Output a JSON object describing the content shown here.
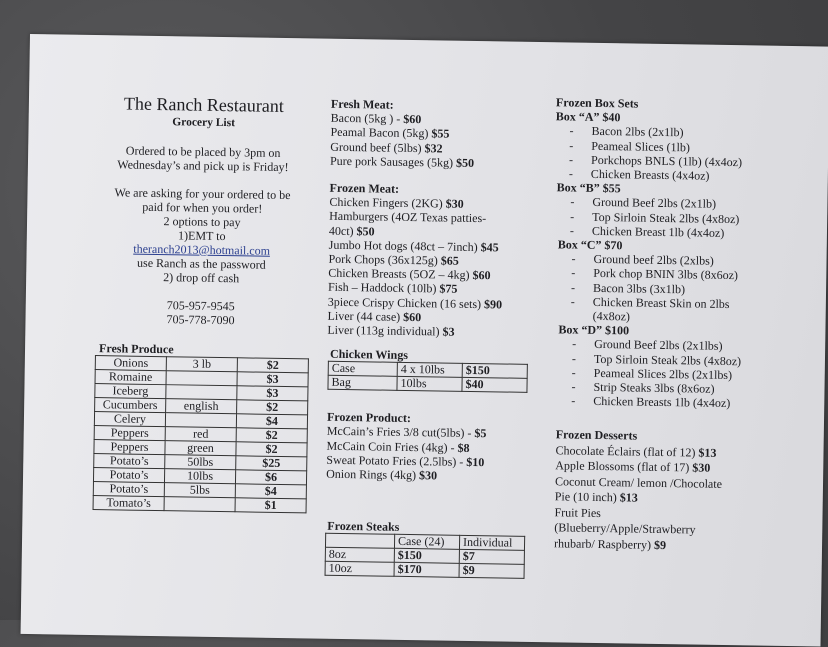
{
  "header": {
    "title": "The Ranch Restaurant",
    "subtitle": "Grocery List",
    "info": [
      "Ordered to be placed by 3pm on",
      "Wednesday’s and pick up is Friday!",
      "",
      "We are asking for your ordered to be",
      "paid for when you order!",
      "2 options to pay",
      "1)EMT to"
    ],
    "email": "theranch2013@hotmail.com",
    "info2": [
      "use Ranch as the password",
      "2) drop off cash",
      "",
      "705-957-9545",
      "705-778-7090"
    ]
  },
  "fresh_meat": {
    "heading": "Fresh Meat:",
    "items": [
      {
        "text": "Bacon (5kg ) - ",
        "price": "$60"
      },
      {
        "text": "Peamal Bacon (5kg) ",
        "price": "$55"
      },
      {
        "text": "Ground beef (5lbs)  ",
        "price": "$32"
      },
      {
        "text": "Pure pork Sausages (5kg) ",
        "price": "$50"
      }
    ]
  },
  "frozen_meat": {
    "heading": "Frozen Meat:",
    "items": [
      {
        "text": "Chicken Fingers  (2KG) ",
        "price": "$30"
      },
      {
        "text": "Hamburgers (4OZ Texas patties-",
        "price": ""
      },
      {
        "text": "40ct) ",
        "price": "$50"
      },
      {
        "text": "Jumbo Hot dogs (48ct – 7inch) ",
        "price": "$45"
      },
      {
        "text": "Pork Chops (36x125g) ",
        "price": "$65"
      },
      {
        "text": "Chicken Breasts (5OZ – 4kg) ",
        "price": "$60"
      },
      {
        "text": "Fish – Haddock (10lb) ",
        "price": "$75"
      },
      {
        "text": "3piece Crispy Chicken (16 sets) ",
        "price": "$90"
      },
      {
        "text": "Liver  (44 case) ",
        "price": "$60"
      },
      {
        "text": "Liver  (113g individual) ",
        "price": "$3"
      }
    ]
  },
  "box_sets": {
    "heading": "Frozen Box Sets",
    "boxes": [
      {
        "title": "Box “A” $40",
        "items": [
          "Bacon 2lbs (2x1lb)",
          "Peameal Slices (1lb)",
          "Porkchops BNLS (1lb) (4x4oz)",
          "Chicken Breasts (4x4oz)"
        ]
      },
      {
        "title": "Box “B” $55",
        "items": [
          "Ground Beef 2lbs (2x1lb)",
          "Top Sirloin Steak 2lbs (4x8oz)",
          "Chicken Breast 1lb (4x4oz)"
        ]
      },
      {
        "title": "Box “C” $70",
        "items": [
          "Ground beef 2lbs (2xlbs)",
          "Pork chop BNIN 3lbs (8x6oz)",
          "Bacon 3lbs (3x1lb)",
          "Chicken Breast Skin on 2lbs",
          "(4x8oz)"
        ]
      },
      {
        "title": "Box “D” $100",
        "items": [
          "Ground Beef 2lbs (2x1lbs)",
          "Top Sirloin Steak 2lbs (4x8oz)",
          "Peameal Slices 2lbs (2x1lbs)",
          "Strip Steaks 3lbs (8x6oz)",
          "Chicken Breasts 1lb (4x4oz)"
        ]
      }
    ]
  },
  "fresh_produce": {
    "heading": "Fresh Produce",
    "rows": [
      [
        "Onions",
        "3 lb",
        "$2"
      ],
      [
        "Romaine",
        "",
        "$3"
      ],
      [
        "Iceberg",
        "",
        "$3"
      ],
      [
        "Cucumbers",
        "english",
        "$2"
      ],
      [
        "Celery",
        "",
        "$4"
      ],
      [
        "Peppers",
        "red",
        "$2"
      ],
      [
        "Peppers",
        "green",
        "$2"
      ],
      [
        "Potato’s",
        "50lbs",
        "$25"
      ],
      [
        "Potato’s",
        "10lbs",
        "$6"
      ],
      [
        "Potato’s",
        "5lbs",
        "$4"
      ],
      [
        "Tomato’s",
        "",
        "$1"
      ]
    ]
  },
  "chicken_wings": {
    "heading": "Chicken Wings",
    "rows": [
      [
        "Case",
        "4 x 10lbs",
        "$150"
      ],
      [
        "Bag",
        "10lbs",
        "$40"
      ]
    ]
  },
  "frozen_product": {
    "heading": "Frozen Product:",
    "items": [
      {
        "text": "McCain’s Fries 3/8 cut(5lbs) - ",
        "price": "$5"
      },
      {
        "text": "McCain Coin Fries (4kg) - ",
        "price": "$8"
      },
      {
        "text": "Sweat Potato Fries (2.5lbs) - ",
        "price": "$10"
      },
      {
        "text": "Onion Rings (4kg) ",
        "price": "$30"
      }
    ]
  },
  "frozen_steaks": {
    "heading": "Frozen Steaks",
    "columns": [
      "",
      "Case (24)",
      "Individual"
    ],
    "rows": [
      [
        "8oz",
        "$150",
        "$7"
      ],
      [
        "10oz",
        "$170",
        "$9"
      ]
    ]
  },
  "desserts": {
    "heading": "Frozen Desserts",
    "items": [
      {
        "text": "Chocolate Éclairs  (flat of 12) ",
        "price": "$13"
      },
      {
        "text": "Apple Blossoms (flat of 17) ",
        "price": "$30"
      },
      {
        "text": "Coconut Cream/ lemon /Chocolate",
        "price": ""
      },
      {
        "text": "Pie (10 inch) ",
        "price": "$13"
      },
      {
        "text": "Fruit Pies",
        "price": ""
      },
      {
        "text": "(Blueberry/Apple/Strawberry",
        "price": ""
      },
      {
        "text": "rhubarb/ Raspberry)  ",
        "price": "$9"
      }
    ]
  }
}
